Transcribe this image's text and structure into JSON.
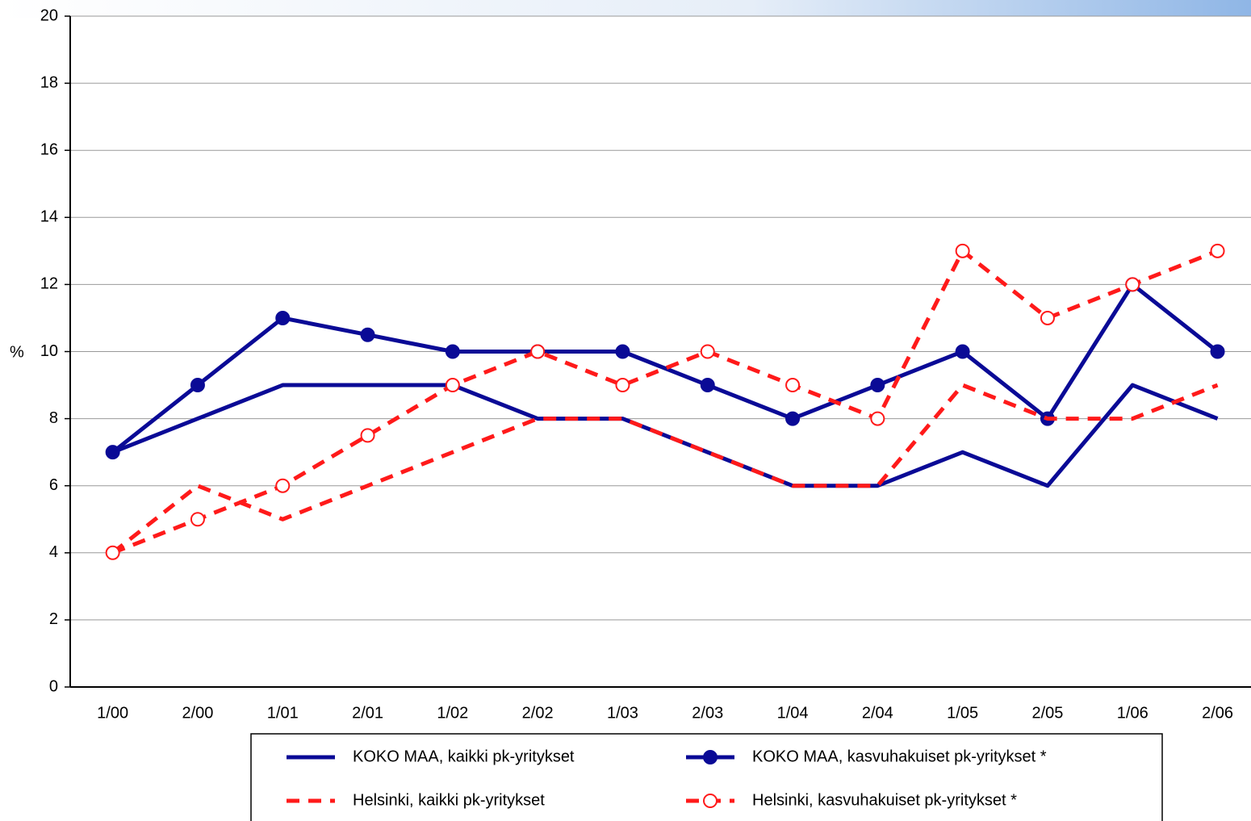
{
  "chart_data": {
    "type": "line",
    "y_label": "%",
    "categories": [
      "1/00",
      "2/00",
      "1/01",
      "2/01",
      "1/02",
      "2/02",
      "1/03",
      "2/03",
      "1/04",
      "2/04",
      "1/05",
      "2/05",
      "1/06",
      "2/06"
    ],
    "series": [
      {
        "name": "KOKO MAA, kaikki pk-yritykset",
        "color": "#0a0a96",
        "dashed": false,
        "marker": "none",
        "values": [
          7,
          8,
          9,
          9,
          9,
          8,
          8,
          7,
          6,
          6,
          7,
          6,
          9,
          8
        ]
      },
      {
        "name": "KOKO MAA, kasvuhakuiset pk-yritykset *",
        "color": "#0a0a96",
        "dashed": false,
        "marker": "filled",
        "values": [
          7,
          9,
          11,
          10.5,
          10,
          10,
          10,
          9,
          8,
          9,
          10,
          8,
          12,
          10
        ]
      },
      {
        "name": "Helsinki, kaikki pk-yritykset",
        "color": "#ff1a1a",
        "dashed": true,
        "marker": "none",
        "values": [
          4,
          6,
          5,
          6,
          7,
          8,
          8,
          7,
          6,
          6,
          9,
          8,
          8,
          9
        ]
      },
      {
        "name": "Helsinki, kasvuhakuiset pk-yritykset *",
        "color": "#ff1a1a",
        "dashed": true,
        "marker": "open",
        "values": [
          4,
          5,
          6,
          7.5,
          9,
          10,
          9,
          10,
          9,
          8,
          13,
          11,
          12,
          13
        ]
      }
    ],
    "ylim": [
      0,
      20
    ],
    "yticks": [
      0,
      2,
      4,
      6,
      8,
      10,
      12,
      14,
      16,
      18,
      20
    ],
    "grid": true
  }
}
